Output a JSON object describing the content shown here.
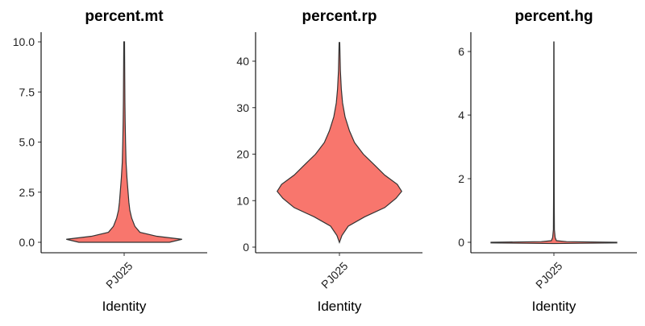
{
  "chart_data": [
    {
      "type": "violin",
      "title": "percent.mt",
      "xlabel": "Identity",
      "categories": [
        "PJ025"
      ],
      "ylim": [
        0,
        10
      ],
      "yticks": [
        "0.0",
        "2.5",
        "5.0",
        "7.5",
        "10.0"
      ],
      "ytick_values": [
        0,
        2.5,
        5,
        7.5,
        10
      ],
      "fill": "#F8766D",
      "density": [
        {
          "y": 0.0,
          "w": 0.72
        },
        {
          "y": 0.15,
          "w": 0.92
        },
        {
          "y": 0.3,
          "w": 0.52
        },
        {
          "y": 0.5,
          "w": 0.25
        },
        {
          "y": 0.8,
          "w": 0.17
        },
        {
          "y": 1.2,
          "w": 0.12
        },
        {
          "y": 1.6,
          "w": 0.09
        },
        {
          "y": 2.0,
          "w": 0.075
        },
        {
          "y": 2.6,
          "w": 0.06
        },
        {
          "y": 3.2,
          "w": 0.045
        },
        {
          "y": 4.0,
          "w": 0.03
        },
        {
          "y": 5.0,
          "w": 0.022
        },
        {
          "y": 6.0,
          "w": 0.016
        },
        {
          "y": 7.0,
          "w": 0.012
        },
        {
          "y": 8.0,
          "w": 0.01
        },
        {
          "y": 9.0,
          "w": 0.008
        },
        {
          "y": 10.0,
          "w": 0.006
        }
      ]
    },
    {
      "type": "violin",
      "title": "percent.rp",
      "xlabel": "Identity",
      "categories": [
        "PJ025"
      ],
      "ylim": [
        0,
        45
      ],
      "yticks": [
        "0",
        "10",
        "20",
        "30",
        "40"
      ],
      "ytick_values": [
        0,
        10,
        20,
        30,
        40
      ],
      "fill": "#F8766D",
      "density": [
        {
          "y": 1.0,
          "w": 0.0
        },
        {
          "y": 2.5,
          "w": 0.04
        },
        {
          "y": 4.5,
          "w": 0.14
        },
        {
          "y": 6.5,
          "w": 0.4
        },
        {
          "y": 8.5,
          "w": 0.72
        },
        {
          "y": 10.5,
          "w": 0.9
        },
        {
          "y": 12.0,
          "w": 0.99
        },
        {
          "y": 13.5,
          "w": 0.92
        },
        {
          "y": 15.5,
          "w": 0.72
        },
        {
          "y": 17.5,
          "w": 0.57
        },
        {
          "y": 20.0,
          "w": 0.38
        },
        {
          "y": 22.5,
          "w": 0.24
        },
        {
          "y": 25.0,
          "w": 0.16
        },
        {
          "y": 28.0,
          "w": 0.09
        },
        {
          "y": 31.0,
          "w": 0.05
        },
        {
          "y": 34.0,
          "w": 0.03
        },
        {
          "y": 38.0,
          "w": 0.015
        },
        {
          "y": 44.0,
          "w": 0.005
        }
      ]
    },
    {
      "type": "violin",
      "title": "percent.hg",
      "xlabel": "Identity",
      "categories": [
        "PJ025"
      ],
      "ylim": [
        0,
        6.3
      ],
      "yticks": [
        "0",
        "2",
        "4",
        "6"
      ],
      "ytick_values": [
        0,
        2,
        4,
        6
      ],
      "fill": "#F8766D",
      "density": [
        {
          "y": -0.04,
          "w": 0.0
        },
        {
          "y": -0.02,
          "w": 1.0
        },
        {
          "y": 0.0,
          "w": 1.0
        },
        {
          "y": 0.02,
          "w": 0.2
        },
        {
          "y": 0.05,
          "w": 0.04
        },
        {
          "y": 0.15,
          "w": 0.02
        },
        {
          "y": 0.4,
          "w": 0.008
        },
        {
          "y": 1.5,
          "w": 0.005
        },
        {
          "y": 3.0,
          "w": 0.004
        },
        {
          "y": 4.5,
          "w": 0.003
        },
        {
          "y": 6.3,
          "w": 0.002
        }
      ]
    }
  ]
}
